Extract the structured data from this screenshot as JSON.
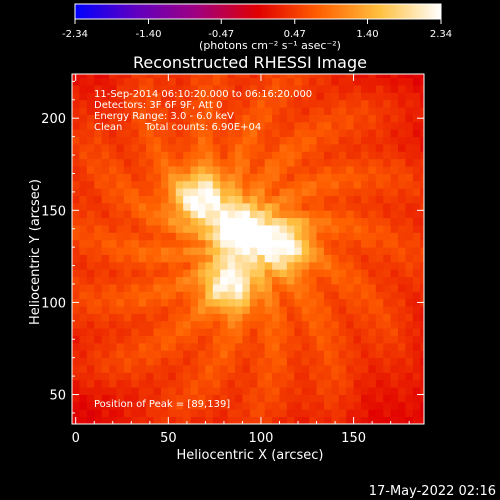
{
  "colorbar": {
    "min": -2.34,
    "max": 2.34,
    "tick_values": [
      -2.34,
      -1.4,
      -0.47,
      0.47,
      1.4,
      2.34
    ],
    "tick_labels": [
      "-2.34",
      "-1.40",
      "-0.47",
      "0.47",
      "1.40",
      "2.34"
    ],
    "units_label": "(photons cm⁻² s⁻¹ asec⁻²)",
    "colors": [
      "#0000ff",
      "#6000c0",
      "#a00080",
      "#e00000",
      "#ff6000",
      "#ffc040",
      "#ffffff"
    ]
  },
  "annotations": {
    "time_range": "11-Sep-2014 06:10:20.000 to 06:16:20.000",
    "detectors": "Detectors: 3F 6F 9F, Att 0",
    "energy_range": "Energy Range: 3.0 - 6.0 keV",
    "algorithm": "Clean",
    "total_counts": "Total counts: 6.90E+04",
    "peak_position": "Position of Peak = [89,139]"
  },
  "footer": {
    "timestamp": "17-May-2022 02:16"
  },
  "chart_data": {
    "type": "heatmap",
    "title": "Reconstructed RHESSI Image",
    "xlabel": "Heliocentric X (arcsec)",
    "ylabel": "Heliocentric Y (arcsec)",
    "xlim": [
      -2,
      188
    ],
    "ylim": [
      34,
      224
    ],
    "xticks": [
      0,
      50,
      100,
      150
    ],
    "yticks": [
      50,
      100,
      150,
      200
    ],
    "peak": [
      89,
      139
    ],
    "sources": [
      {
        "x": 89,
        "y": 139,
        "amplitude": 2.34
      },
      {
        "x": 67,
        "y": 157,
        "amplitude": 1.9
      },
      {
        "x": 112,
        "y": 131,
        "amplitude": 1.85
      },
      {
        "x": 83,
        "y": 110,
        "amplitude": 1.8
      }
    ]
  }
}
